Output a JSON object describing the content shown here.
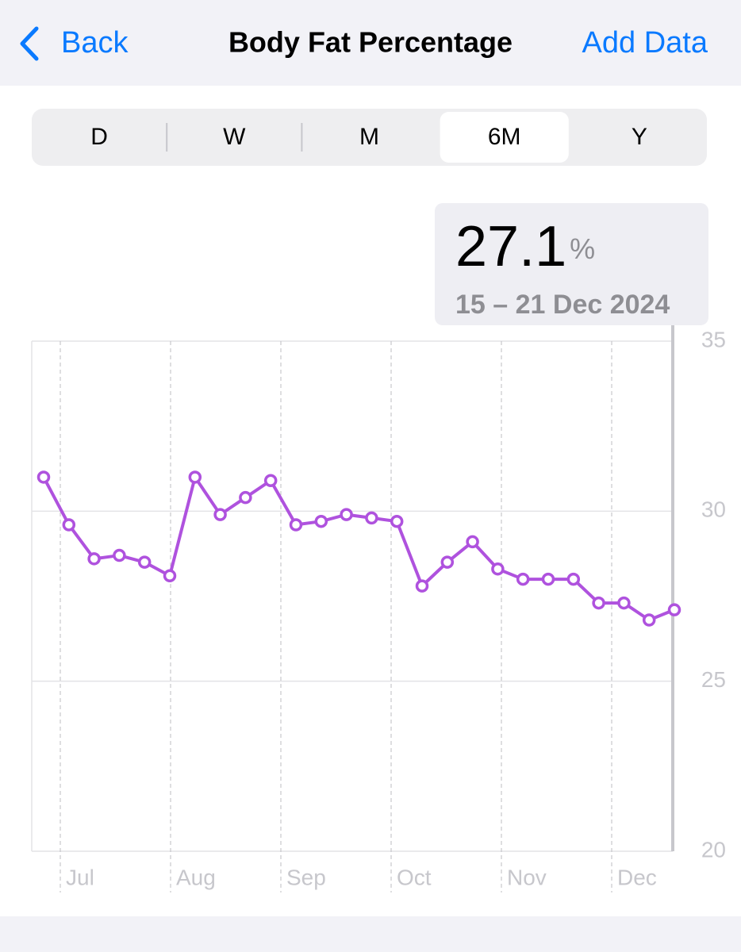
{
  "nav": {
    "back": "Back",
    "title": "Body Fat Percentage",
    "action": "Add Data"
  },
  "segments": {
    "items": [
      "D",
      "W",
      "M",
      "6M",
      "Y"
    ],
    "selected": 3
  },
  "highlight": {
    "value": "27.1",
    "unit": "%",
    "range": "15 – 21 Dec 2024"
  },
  "chart_data": {
    "type": "line",
    "categories": [
      null,
      null,
      null,
      null,
      null,
      null,
      null,
      null,
      null,
      null,
      null,
      null,
      null,
      null,
      null,
      null,
      null,
      null,
      null,
      null,
      null,
      null,
      null,
      null,
      null,
      null
    ],
    "month_labels": [
      "Jul",
      "Aug",
      "Sep",
      "Oct",
      "Nov",
      "Dec"
    ],
    "series": [
      {
        "name": "Body Fat Percentage",
        "color": "#af52de",
        "values": [
          31.0,
          29.6,
          28.6,
          28.7,
          28.5,
          28.1,
          31.0,
          29.9,
          30.4,
          30.9,
          29.6,
          29.7,
          29.9,
          29.8,
          29.7,
          27.8,
          28.5,
          29.1,
          28.3,
          28.0,
          28.0,
          28.0,
          27.3,
          27.3,
          26.8,
          27.1
        ]
      }
    ],
    "ylim": [
      20,
      35
    ],
    "yticks": [
      20,
      25,
      30,
      35
    ],
    "grid": true
  }
}
